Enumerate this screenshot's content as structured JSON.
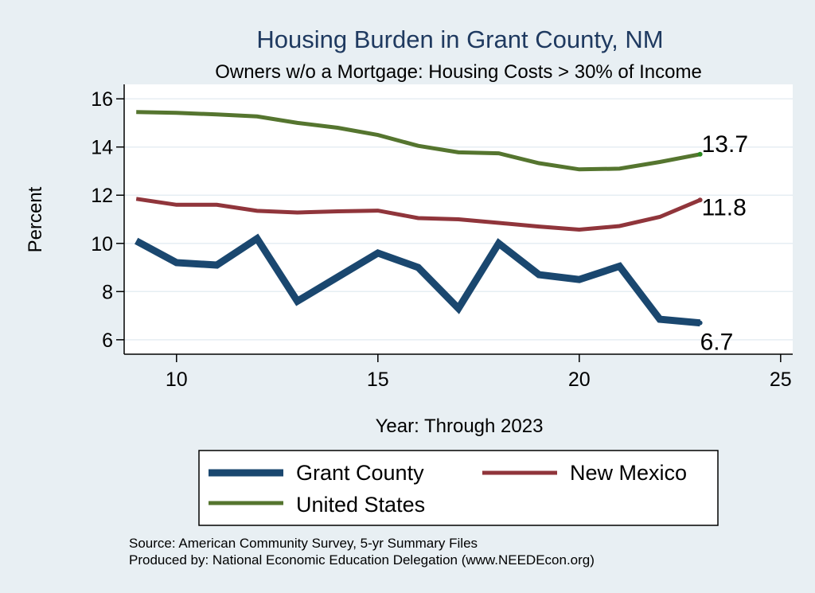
{
  "chart_data": {
    "type": "line",
    "title": "Housing Burden in Grant County, NM",
    "subtitle": "Owners w/o a Mortgage: Housing Costs > 30% of Income",
    "xlabel": "Year: Through 2023",
    "ylabel": "Percent",
    "xlim": [
      8.7,
      25.3
    ],
    "ylim": [
      5.4,
      16.6
    ],
    "xticks": [
      10,
      15,
      20,
      25
    ],
    "yticks": [
      6,
      8,
      10,
      12,
      14,
      16
    ],
    "grid": true,
    "x": [
      9,
      10,
      11,
      12,
      13,
      14,
      15,
      16,
      17,
      18,
      19,
      20,
      21,
      22,
      23
    ],
    "series": [
      {
        "name": "Grant County",
        "color": "#1a476f",
        "values": [
          10.1,
          9.2,
          9.1,
          10.2,
          7.6,
          8.6,
          9.6,
          9.0,
          7.3,
          10.0,
          8.7,
          8.5,
          9.05,
          6.85,
          6.7
        ],
        "end_label": "6.7"
      },
      {
        "name": "New Mexico",
        "color": "#90353b",
        "values": [
          11.85,
          11.6,
          11.6,
          11.35,
          11.28,
          11.33,
          11.36,
          11.05,
          11.0,
          10.85,
          10.7,
          10.57,
          10.72,
          11.1,
          11.8
        ],
        "end_label": "11.8"
      },
      {
        "name": "United States",
        "color": "#55752f",
        "values": [
          15.45,
          15.42,
          15.35,
          15.27,
          15.0,
          14.8,
          14.5,
          14.05,
          13.78,
          13.74,
          13.33,
          13.07,
          13.1,
          13.38,
          13.7
        ],
        "end_label": "13.7"
      }
    ],
    "legend": {
      "position": "bottom",
      "entries": [
        "Grant County",
        "New Mexico",
        "United States"
      ]
    }
  },
  "notes": {
    "source": "Source: American Community Survey, 5-yr Summary Files",
    "produced_by": "Produced by: National Economic Education Delegation (www.NEEDEcon.org)"
  }
}
